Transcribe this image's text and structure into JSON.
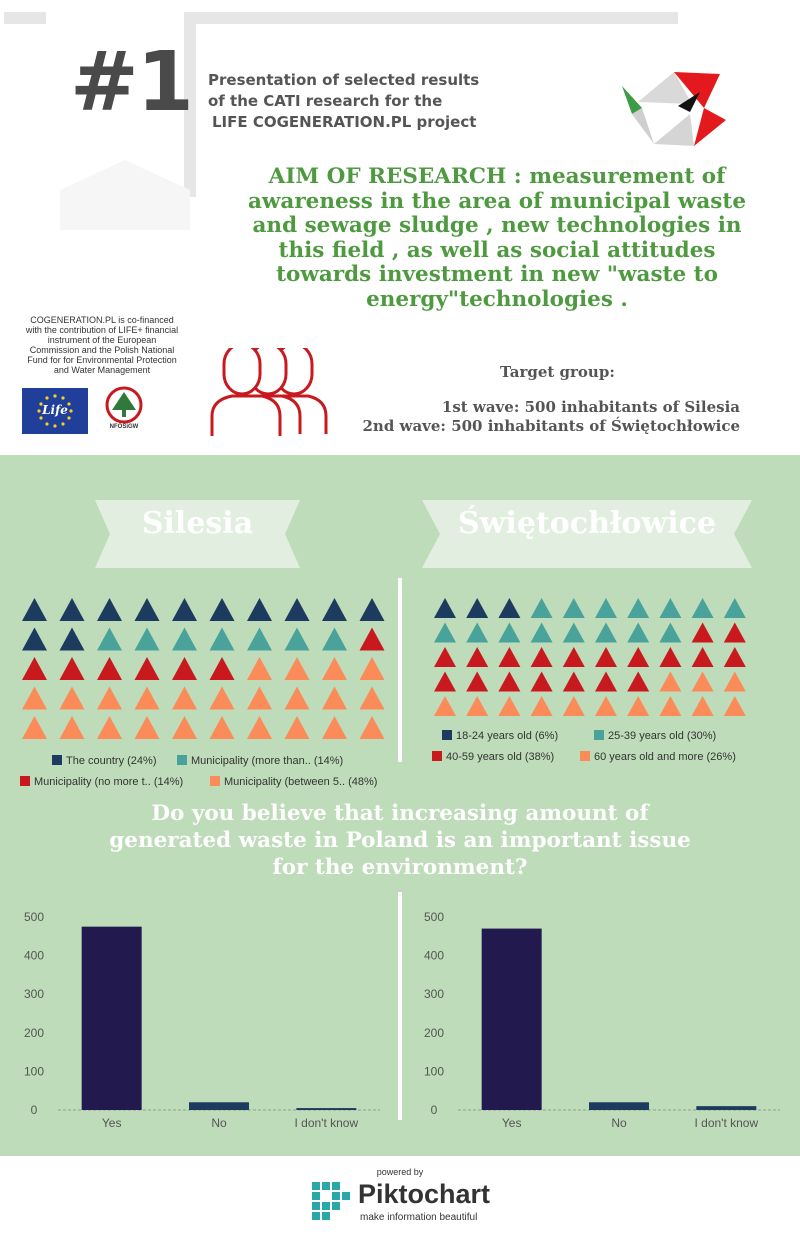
{
  "header": {
    "number": "#1",
    "title_lines": [
      "Presentation of selected results",
      "of the CATI research for the",
      "LIFE COGENERATION.PL project"
    ]
  },
  "aim_lines": [
    "AIM OF RESEARCH : measurement of",
    "awareness in the area of municipal waste",
    "and sewage sludge , new technologies in",
    "this field , as well as social attitudes",
    "towards investment in new \"waste to",
    "energy\"technologies ."
  ],
  "cofinance_lines": [
    "COGENERATION.PL is co-financed",
    "with the contribution of LIFE+ financial",
    "instrument of the European",
    "Commission and the Polish National",
    "Fund for for Environmental Protection",
    "and Water Management"
  ],
  "logos": {
    "life": "Life",
    "nfos": "NFOŚiGW"
  },
  "target": {
    "label": "Target group:",
    "wave1": "1st wave: 500 inhabitants of Silesia",
    "wave2": "2nd wave: 500 inhabitants of Świętochłowice"
  },
  "banners": {
    "left": "Silesia",
    "right": "Świętochłowice"
  },
  "colors": {
    "navy": "#1d3a5f",
    "teal": "#4aa39b",
    "red": "#c8191f",
    "orange": "#fb8c5a",
    "bar": "#221a4f"
  },
  "silesia_legend": [
    {
      "label": "The country (24%)",
      "color": "#1d3a5f"
    },
    {
      "label": "Municipality (more than.. (14%)",
      "color": "#4aa39b"
    },
    {
      "label": "Municipality (no more t.. (14%)",
      "color": "#c8191f"
    },
    {
      "label": "Municipality (between 5.. (48%)",
      "color": "#fb8c5a"
    }
  ],
  "swiet_legend": [
    {
      "label": "18-24 years old (6%)",
      "color": "#1d3a5f"
    },
    {
      "label": "25-39 years old (30%)",
      "color": "#4aa39b"
    },
    {
      "label": "40-59 years old (38%)",
      "color": "#c8191f"
    },
    {
      "label": "60 years old and more (26%)",
      "color": "#fb8c5a"
    }
  ],
  "question_lines": [
    "Do you believe that increasing amount of",
    "generated waste in Poland is an important issue",
    "for the environment?"
  ],
  "chart_data": [
    {
      "type": "bar",
      "categories": [
        "Yes",
        "No",
        "I don't know"
      ],
      "values": [
        475,
        20,
        5
      ],
      "yticks": [
        0,
        100,
        200,
        300,
        400,
        500
      ],
      "ylim": [
        0,
        500
      ]
    },
    {
      "type": "bar",
      "categories": [
        "Yes",
        "No",
        "I don't know"
      ],
      "values": [
        470,
        20,
        10
      ],
      "yticks": [
        0,
        100,
        200,
        300,
        400,
        500
      ],
      "ylim": [
        0,
        500
      ]
    }
  ],
  "footer": {
    "powered": "powered by",
    "name": "Piktochart",
    "tagline": "make information beautiful"
  }
}
